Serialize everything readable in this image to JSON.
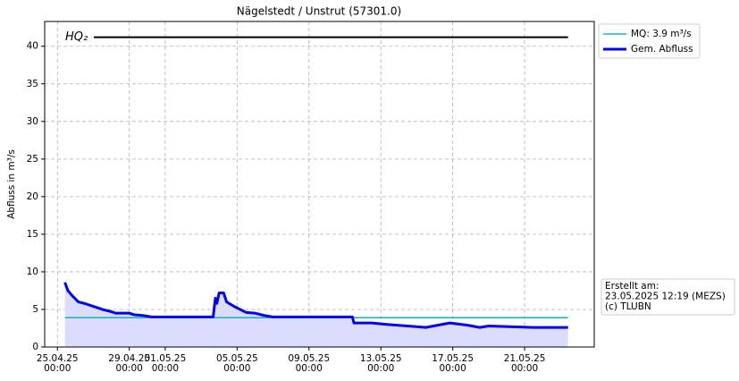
{
  "chart_data": {
    "type": "line",
    "title": "Nägelstedt / Unstrut (57301.0)",
    "y_label": "Abfluss in m³/s",
    "xlim": [
      "24.04.25 07:00",
      "24.05.25 21:00"
    ],
    "xticks": [
      "25.04.25 00:00",
      "29.04.25 00:00",
      "01.05.25 00:00",
      "05.05.25 00:00",
      "09.05.25 00:00",
      "13.05.25 00:00",
      "17.05.25 00:00",
      "21.05.25 00:00"
    ],
    "ylim": [
      0,
      43.3
    ],
    "yticks": [
      0,
      5,
      10,
      15,
      20,
      25,
      30,
      35,
      40
    ],
    "grid": true,
    "legend": "outside-upper-right",
    "series": [
      {
        "name": "MQ: 3.9 m³/s",
        "color": "#1fb5c0",
        "x": [
          "25.04.25 10:00",
          "23.05.25 10:00"
        ],
        "values": [
          3.9,
          3.9
        ]
      },
      {
        "name": "Gem. Abfluss",
        "color": "#0000ee",
        "fill": "#dcdcff",
        "x": [
          "25.04.25 10:00",
          "25.04.25 14:00",
          "25.04.25 20:00",
          "26.04.25 04:00",
          "26.04.25 12:00",
          "27.04.25 00:00",
          "27.04.25 12:00",
          "28.04.25 00:00",
          "28.04.25 06:00",
          "29.04.25 00:00",
          "29.04.25 06:00",
          "29.04.25 18:00",
          "30.04.25 06:00",
          "03.05.25 16:00",
          "03.05.25 19:00",
          "03.05.25 21:00",
          "04.05.25 00:00",
          "04.05.25 06:00",
          "04.05.25 10:00",
          "04.05.25 20:00",
          "05.05.25 04:00",
          "05.05.25 12:00",
          "06.05.25 00:00",
          "06.05.25 12:00",
          "07.05.25 00:00",
          "11.05.25 10:00",
          "11.05.25 12:00",
          "12.05.25 12:00",
          "13.05.25 08:00",
          "14.05.25 12:00",
          "15.05.25 12:00",
          "16.05.25 20:00",
          "17.05.25 20:00",
          "18.05.25 12:00",
          "19.05.25 00:00",
          "21.05.25 12:00",
          "23.05.25 10:00"
        ],
        "values": [
          8.6,
          7.5,
          6.8,
          6.0,
          5.8,
          5.4,
          5.0,
          4.7,
          4.5,
          4.5,
          4.3,
          4.2,
          4.0,
          4.0,
          6.5,
          5.8,
          7.2,
          7.2,
          6.0,
          5.4,
          5.0,
          4.6,
          4.5,
          4.2,
          4.0,
          4.0,
          3.2,
          3.2,
          3.0,
          2.8,
          2.6,
          3.2,
          2.9,
          2.6,
          2.8,
          2.6,
          2.6
        ]
      }
    ],
    "reference_lines": [
      {
        "label": "HQ₂",
        "value": 41.2,
        "color": "#000000"
      }
    ],
    "info": [
      "Erstellt am:",
      "23.05.2025 12:19 (MEZS)",
      "(c) TLUBN"
    ]
  }
}
